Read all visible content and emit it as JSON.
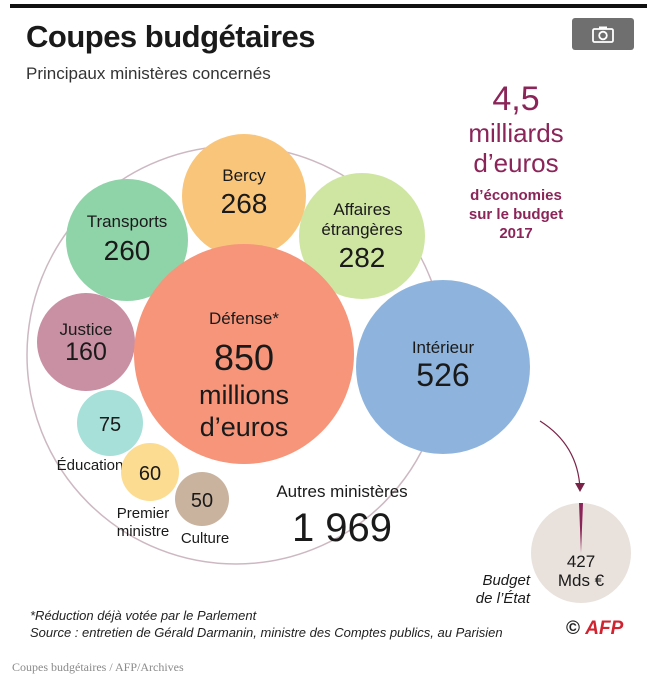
{
  "header": {
    "title": "Coupes budgétaires",
    "subtitle": "Principaux ministères concernés"
  },
  "toolbar": {
    "camera_icon": "camera-icon"
  },
  "chart_data": {
    "type": "bubble",
    "title": "Coupes budgétaires",
    "subtitle": "Principaux ministères concernés",
    "unit": "millions d’euros",
    "total": {
      "value": "4,5",
      "unit_lines": [
        "milliards",
        "d’euros"
      ],
      "caption_lines": [
        "d’économies",
        "sur le budget",
        "2017"
      ]
    },
    "items": [
      {
        "label": "Bercy",
        "value": 268,
        "display": "268",
        "color": "#f9c57b"
      },
      {
        "label": "Transports",
        "value": 260,
        "display": "260",
        "color": "#8fd3a8"
      },
      {
        "label": "Affaires étrangères",
        "label_lines": [
          "Affaires",
          "étrangères"
        ],
        "value": 282,
        "display": "282",
        "color": "#cfe6a3"
      },
      {
        "label": "Justice",
        "value": 160,
        "display": "160",
        "color": "#c98fa3"
      },
      {
        "label": "Défense*",
        "value": 850,
        "display_lines": [
          "850",
          "millions",
          "d’euros"
        ],
        "color": "#f6957a"
      },
      {
        "label": "Intérieur",
        "value": 526,
        "display": "526",
        "color": "#8eb4dd"
      },
      {
        "label": "Éducation",
        "value": 75,
        "display": "75",
        "color": "#a6e0d9"
      },
      {
        "label": "Premier ministre",
        "label_lines": [
          "Premier",
          "ministre"
        ],
        "value": 60,
        "display": "60",
        "color": "#fcdc91"
      },
      {
        "label": "Culture",
        "value": 50,
        "display": "50",
        "color": "#c9b39f"
      },
      {
        "label": "Autres ministères",
        "value": 1969,
        "display": "1 969",
        "color": "none"
      }
    ],
    "budget": {
      "label_lines": [
        "Budget",
        "de l’État"
      ],
      "value_lines": [
        "427",
        "Mds €"
      ],
      "color": "#e9e1dc"
    },
    "accent_color": "#8b2459"
  },
  "footer": {
    "footnote": "*Réduction déjà votée par le Parlement",
    "source": "Source : entretien de Gérald Darmanin, ministre des Comptes publics, au Parisien",
    "credit_symbol": "©",
    "credit_agency": "AFP"
  },
  "caption": "Coupes budgétaires / AFP/Archives"
}
